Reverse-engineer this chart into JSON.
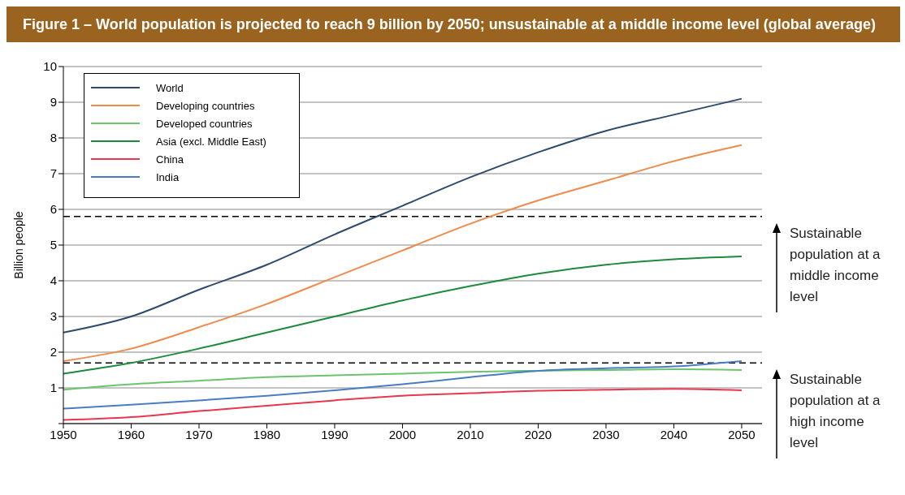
{
  "chart_data": {
    "type": "line",
    "title": "Figure 1 – World population is projected to reach 9 billion by 2050; unsustainable at a middle income level (global average)",
    "ylabel": "Billion people",
    "x": [
      1950,
      1960,
      1970,
      1980,
      1990,
      2000,
      2010,
      2020,
      2030,
      2040,
      2050
    ],
    "series": [
      {
        "name": "World",
        "color": "#2e4a6e",
        "values": [
          2.55,
          3.0,
          3.75,
          4.45,
          5.3,
          6.1,
          6.9,
          7.6,
          8.2,
          8.65,
          9.1
        ]
      },
      {
        "name": "Developing countries",
        "color": "#f08a4b",
        "values": [
          1.75,
          2.1,
          2.7,
          3.35,
          4.1,
          4.85,
          5.6,
          6.25,
          6.8,
          7.35,
          7.8
        ]
      },
      {
        "name": "Developed countries",
        "color": "#6cc46c",
        "values": [
          0.95,
          1.1,
          1.2,
          1.3,
          1.35,
          1.4,
          1.45,
          1.48,
          1.5,
          1.52,
          1.5
        ]
      },
      {
        "name": "Asia (excl. Middle East)",
        "color": "#1e8a3c",
        "values": [
          1.4,
          1.7,
          2.1,
          2.55,
          3.0,
          3.45,
          3.85,
          4.2,
          4.45,
          4.6,
          4.68
        ]
      },
      {
        "name": "China",
        "color": "#e8384f",
        "values": [
          0.1,
          0.18,
          0.35,
          0.5,
          0.65,
          0.78,
          0.85,
          0.92,
          0.95,
          0.97,
          0.93
        ]
      },
      {
        "name": "India",
        "color": "#4a7cc4",
        "values": [
          0.42,
          0.53,
          0.65,
          0.78,
          0.93,
          1.1,
          1.3,
          1.48,
          1.55,
          1.6,
          1.75
        ]
      }
    ],
    "xlim": [
      1950,
      2053
    ],
    "xticks": [
      1950,
      1960,
      1970,
      1980,
      1990,
      2000,
      2010,
      2020,
      2030,
      2040,
      2050
    ],
    "ylim": [
      0,
      10
    ],
    "yticks": [
      {
        "value": 0,
        "label": null
      },
      1,
      2,
      3,
      4,
      5,
      6,
      7,
      8,
      9,
      10
    ],
    "grid": "y",
    "legend": "top left",
    "line_style": "solid",
    "ref_lines": [
      {
        "axis": "y",
        "value": 5.8,
        "color": "#000000",
        "line_style": "dashed"
      },
      {
        "axis": "y",
        "value": 1.7,
        "color": "#000000",
        "line_style": "dashed"
      }
    ],
    "annotations": [
      "Sustainable population at a middle income level",
      "Sustainable population at a high income level"
    ]
  }
}
